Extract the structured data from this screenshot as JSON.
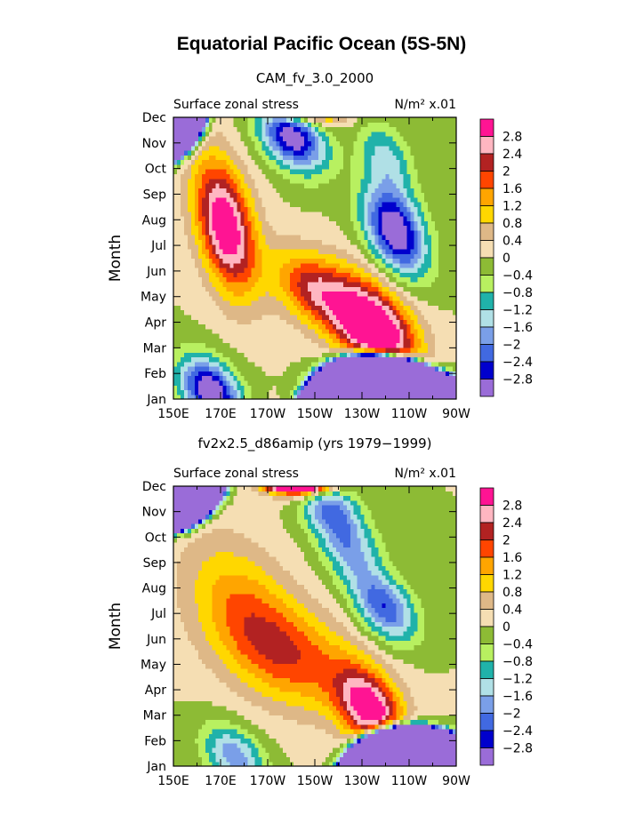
{
  "title": "Equatorial Pacific Ocean (5S-5N)",
  "chart_data": [
    {
      "type": "heatmap",
      "subtitle": "CAM_fv_3.0_2000",
      "left_label": "Surface zonal stress",
      "right_label": "N/m² x.01",
      "ylabel": "Month",
      "x_ticks": [
        "150E",
        "170E",
        "170W",
        "150W",
        "130W",
        "110W",
        "90W"
      ],
      "x_range": [
        150,
        270
      ],
      "y_ticks": [
        "Jan",
        "Feb",
        "Mar",
        "Apr",
        "May",
        "Jun",
        "Jul",
        "Aug",
        "Sep",
        "Oct",
        "Nov",
        "Dec"
      ],
      "colorbar_labels": [
        "2.8",
        "2.4",
        "2",
        "1.6",
        "1.2",
        "0.8",
        "0.4",
        "0",
        "−0.4",
        "−0.8",
        "−1.2",
        "−1.6",
        "−2",
        "−2.4",
        "−2.8"
      ],
      "levels": [
        -2.8,
        -2.4,
        -2,
        -1.6,
        -1.2,
        -0.8,
        -0.4,
        0,
        0.4,
        0.8,
        1.2,
        1.6,
        2,
        2.4,
        2.8
      ],
      "features": [
        {
          "lon": 172,
          "month": 6.8,
          "peak": 3.4,
          "lon_width": 12,
          "month_width": 2.4
        },
        {
          "lon": 236,
          "month": 2.6,
          "peak": 4.0,
          "lon_width": 16,
          "month_width": 1.8
        },
        {
          "lon": 210,
          "month": 4.3,
          "peak": 2.2,
          "lon_width": 16,
          "month_width": 1.4
        },
        {
          "lon": 166,
          "month": 0.3,
          "peak": -3.4,
          "lon_width": 12,
          "month_width": 1.2
        },
        {
          "lon": 244,
          "month": 6.6,
          "peak": -3.4,
          "lon_width": 12,
          "month_width": 1.6
        },
        {
          "lon": 200,
          "month": 10.4,
          "peak": -3.4,
          "lon_width": 13,
          "month_width": 1.3
        },
        {
          "lon": 240,
          "month": 9.5,
          "peak": -1.3,
          "lon_width": 10,
          "month_width": 1.2
        }
      ]
    },
    {
      "type": "heatmap",
      "subtitle": "fv2x2.5_d86amip (yrs 1979−1999)",
      "left_label": "Surface zonal stress",
      "right_label": "N/m² x.01",
      "ylabel": "Month",
      "x_ticks": [
        "150E",
        "170E",
        "170W",
        "150W",
        "130W",
        "110W",
        "90W"
      ],
      "x_range": [
        150,
        270
      ],
      "y_ticks": [
        "Jan",
        "Feb",
        "Mar",
        "Apr",
        "May",
        "Jun",
        "Jul",
        "Aug",
        "Sep",
        "Oct",
        "Nov",
        "Dec"
      ],
      "colorbar_labels": [
        "2.8",
        "2.4",
        "2",
        "1.6",
        "1.2",
        "0.8",
        "0.4",
        "0",
        "−0.4",
        "−0.8",
        "−1.2",
        "−1.6",
        "−2",
        "−2.4",
        "−2.8"
      ],
      "levels": [
        -2.8,
        -2.4,
        -2,
        -1.6,
        -1.2,
        -0.8,
        -0.4,
        0,
        0.4,
        0.8,
        1.2,
        1.6,
        2,
        2.4,
        2.8
      ],
      "features": [
        {
          "lon": 234,
          "month": 2.2,
          "peak": 3.1,
          "lon_width": 13,
          "month_width": 1.5
        },
        {
          "lon": 200,
          "month": 4.3,
          "peak": 1.7,
          "lon_width": 28,
          "month_width": 2.0
        },
        {
          "lon": 178,
          "month": 6.6,
          "peak": 1.2,
          "lon_width": 22,
          "month_width": 2.4
        },
        {
          "lon": 240,
          "month": 6.2,
          "peak": -2.3,
          "lon_width": 12,
          "month_width": 1.2
        },
        {
          "lon": 225,
          "month": 8.5,
          "peak": -1.6,
          "lon_width": 12,
          "month_width": 1.4
        },
        {
          "lon": 215,
          "month": 10.3,
          "peak": -1.9,
          "lon_width": 12,
          "month_width": 1.2
        },
        {
          "lon": 176,
          "month": 0.4,
          "peak": -1.9,
          "lon_width": 12,
          "month_width": 1.1
        }
      ]
    }
  ],
  "palette": [
    "#9a6cd8",
    "#0000cd",
    "#4169e1",
    "#7a9fe8",
    "#b0e0e6",
    "#20b2aa",
    "#b8f060",
    "#8dbb35",
    "#f5deb3",
    "#deb887",
    "#ffd700",
    "#ffa500",
    "#ff4500",
    "#b22222",
    "#ffb6c1",
    "#ff1493"
  ]
}
